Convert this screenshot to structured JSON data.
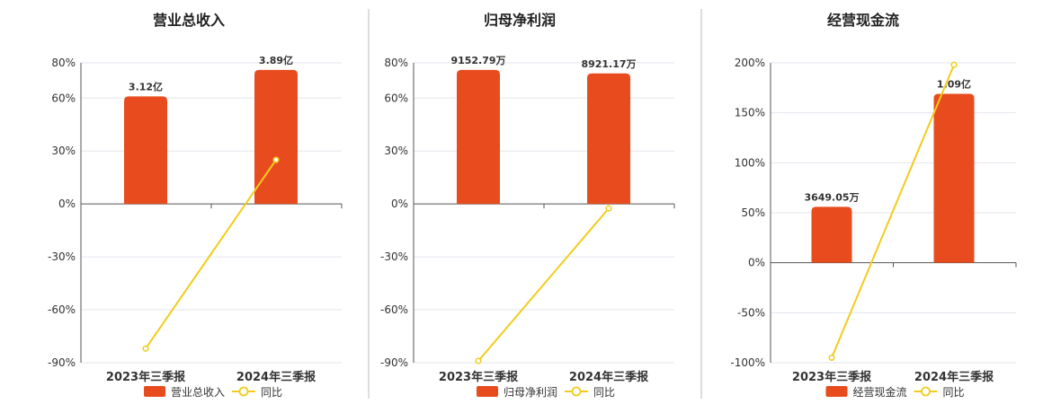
{
  "colors": {
    "bar": "#E84C1E",
    "line": "#F2CC1B",
    "grid": "#E3E6EE",
    "axis": "#555555",
    "divider": "#BBBBBB"
  },
  "legend": {
    "line_label": "同比"
  },
  "chart_data": [
    {
      "type": "bar",
      "title": "营业总收入",
      "categories": [
        "2023年三季报",
        "2024年三季报"
      ],
      "ylim": [
        -90,
        80
      ],
      "yticks": [
        80,
        60,
        30,
        0,
        -30,
        -60,
        -90
      ],
      "ytick_labels": [
        "80%",
        "60%",
        "30%",
        "0%",
        "-30%",
        "-60%",
        "-90%"
      ],
      "bar_series": {
        "name": "营业总收入",
        "values": [
          61,
          76
        ],
        "labels": [
          "3.12亿",
          "3.89亿"
        ]
      },
      "line_series": {
        "name": "同比",
        "values": [
          -82,
          25
        ]
      },
      "legend": "bottom"
    },
    {
      "type": "bar",
      "title": "归母净利润",
      "categories": [
        "2023年三季报",
        "2024年三季报"
      ],
      "ylim": [
        -90,
        80
      ],
      "yticks": [
        80,
        60,
        30,
        0,
        -30,
        -60,
        -90
      ],
      "ytick_labels": [
        "80%",
        "60%",
        "30%",
        "0%",
        "-30%",
        "-60%",
        "-90%"
      ],
      "bar_series": {
        "name": "归母净利润",
        "values": [
          76,
          74
        ],
        "labels": [
          "9152.79万",
          "8921.17万"
        ]
      },
      "line_series": {
        "name": "同比",
        "values": [
          -89,
          -2.5
        ]
      },
      "legend": "bottom"
    },
    {
      "type": "bar",
      "title": "经营现金流",
      "categories": [
        "2023年三季报",
        "2024年三季报"
      ],
      "ylim": [
        -100,
        200
      ],
      "yticks": [
        200,
        150,
        100,
        50,
        0,
        -50,
        -100
      ],
      "ytick_labels": [
        "200%",
        "150%",
        "100%",
        "50%",
        "0%",
        "-50%",
        "-100%"
      ],
      "bar_series": {
        "name": "经营现金流",
        "values": [
          56,
          169
        ],
        "labels": [
          "3649.05万",
          "1.09亿"
        ]
      },
      "line_series": {
        "name": "同比",
        "values": [
          -95,
          198
        ]
      },
      "legend": "bottom"
    }
  ]
}
